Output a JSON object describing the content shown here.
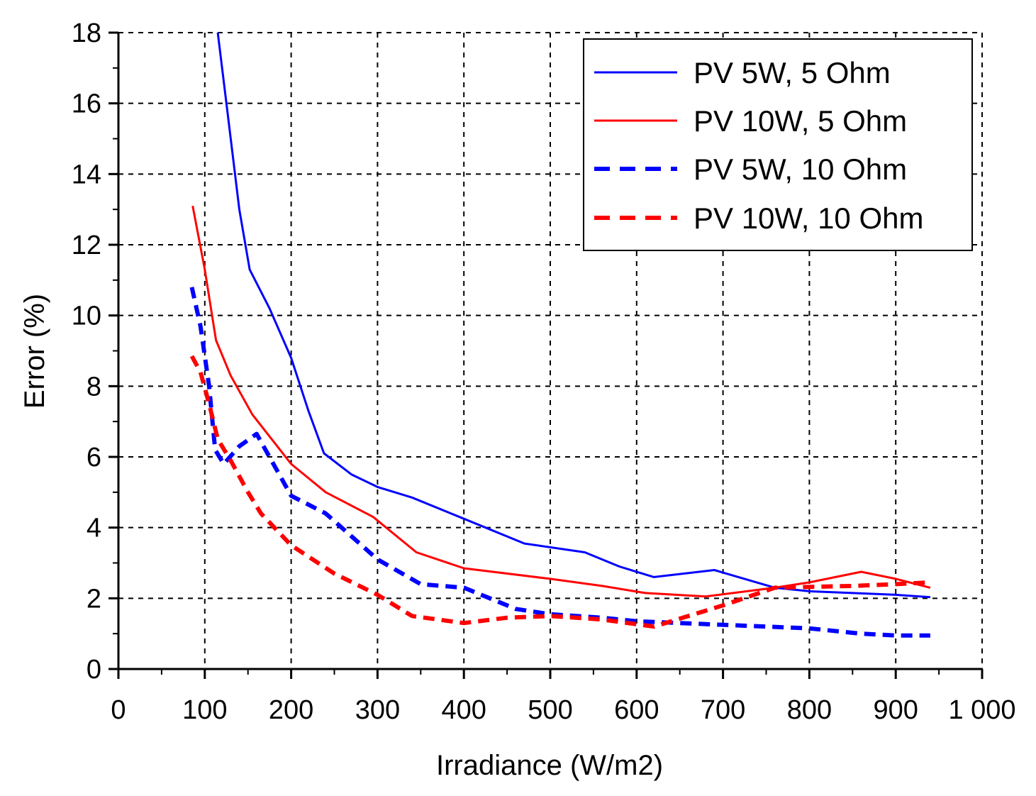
{
  "chart_data": {
    "type": "line",
    "title": "",
    "xlabel": "Irradiance (W/m2)",
    "ylabel": "Error (%)",
    "xlim": [
      0,
      1000
    ],
    "ylim": [
      0,
      18
    ],
    "xticks": [
      0,
      100,
      200,
      300,
      400,
      500,
      600,
      700,
      800,
      900,
      1000
    ],
    "xtick_labels": [
      "0",
      "100",
      "200",
      "300",
      "400",
      "500",
      "600",
      "700",
      "800",
      "900",
      "1 000"
    ],
    "yticks": [
      0,
      2,
      4,
      6,
      8,
      10,
      12,
      14,
      16,
      18
    ],
    "ytick_labels": [
      "0",
      "2",
      "4",
      "6",
      "8",
      "10",
      "12",
      "14",
      "16",
      "18"
    ],
    "grid": true,
    "legend_position": "top-right",
    "series": [
      {
        "name": "PV 5W, 5 Ohm",
        "color": "#0000ff",
        "style": "solid",
        "points": [
          [
            115,
            18
          ],
          [
            125,
            16
          ],
          [
            140,
            13
          ],
          [
            152,
            11.3
          ],
          [
            175,
            10.2
          ],
          [
            200,
            8.8
          ],
          [
            220,
            7.3
          ],
          [
            238,
            6.1
          ],
          [
            270,
            5.5
          ],
          [
            300,
            5.15
          ],
          [
            340,
            4.85
          ],
          [
            400,
            4.25
          ],
          [
            470,
            3.55
          ],
          [
            540,
            3.3
          ],
          [
            580,
            2.9
          ],
          [
            620,
            2.6
          ],
          [
            690,
            2.8
          ],
          [
            760,
            2.3
          ],
          [
            800,
            2.2
          ],
          [
            850,
            2.15
          ],
          [
            900,
            2.1
          ],
          [
            940,
            2.03
          ]
        ]
      },
      {
        "name": "PV 10W, 5 Ohm",
        "color": "#ff0000",
        "style": "solid",
        "points": [
          [
            86,
            13.1
          ],
          [
            100,
            11.3
          ],
          [
            113,
            9.3
          ],
          [
            130,
            8.3
          ],
          [
            155,
            7.2
          ],
          [
            200,
            5.8
          ],
          [
            240,
            5.0
          ],
          [
            295,
            4.3
          ],
          [
            345,
            3.3
          ],
          [
            400,
            2.85
          ],
          [
            500,
            2.55
          ],
          [
            560,
            2.35
          ],
          [
            610,
            2.15
          ],
          [
            680,
            2.05
          ],
          [
            760,
            2.3
          ],
          [
            800,
            2.45
          ],
          [
            860,
            2.75
          ],
          [
            900,
            2.55
          ],
          [
            940,
            2.3
          ]
        ]
      },
      {
        "name": "PV 5W, 10 Ohm",
        "color": "#0000ff",
        "style": "dashed",
        "points": [
          [
            85,
            10.8
          ],
          [
            95,
            9.7
          ],
          [
            105,
            8.0
          ],
          [
            112,
            6.2
          ],
          [
            122,
            5.8
          ],
          [
            140,
            6.3
          ],
          [
            160,
            6.65
          ],
          [
            200,
            4.9
          ],
          [
            240,
            4.4
          ],
          [
            300,
            3.1
          ],
          [
            350,
            2.4
          ],
          [
            400,
            2.3
          ],
          [
            460,
            1.7
          ],
          [
            500,
            1.55
          ],
          [
            560,
            1.45
          ],
          [
            600,
            1.35
          ],
          [
            650,
            1.3
          ],
          [
            700,
            1.25
          ],
          [
            800,
            1.15
          ],
          [
            860,
            1.0
          ],
          [
            900,
            0.95
          ],
          [
            940,
            0.95
          ]
        ]
      },
      {
        "name": "PV 10W, 10 Ohm",
        "color": "#ff0000",
        "style": "dashed",
        "points": [
          [
            85,
            8.85
          ],
          [
            95,
            8.4
          ],
          [
            105,
            7.5
          ],
          [
            115,
            6.5
          ],
          [
            130,
            5.9
          ],
          [
            150,
            5.0
          ],
          [
            165,
            4.4
          ],
          [
            200,
            3.5
          ],
          [
            250,
            2.7
          ],
          [
            300,
            2.1
          ],
          [
            340,
            1.5
          ],
          [
            400,
            1.3
          ],
          [
            450,
            1.45
          ],
          [
            500,
            1.5
          ],
          [
            560,
            1.4
          ],
          [
            620,
            1.2
          ],
          [
            660,
            1.5
          ],
          [
            700,
            1.8
          ],
          [
            760,
            2.3
          ],
          [
            850,
            2.35
          ],
          [
            900,
            2.4
          ],
          [
            940,
            2.45
          ]
        ]
      }
    ]
  }
}
